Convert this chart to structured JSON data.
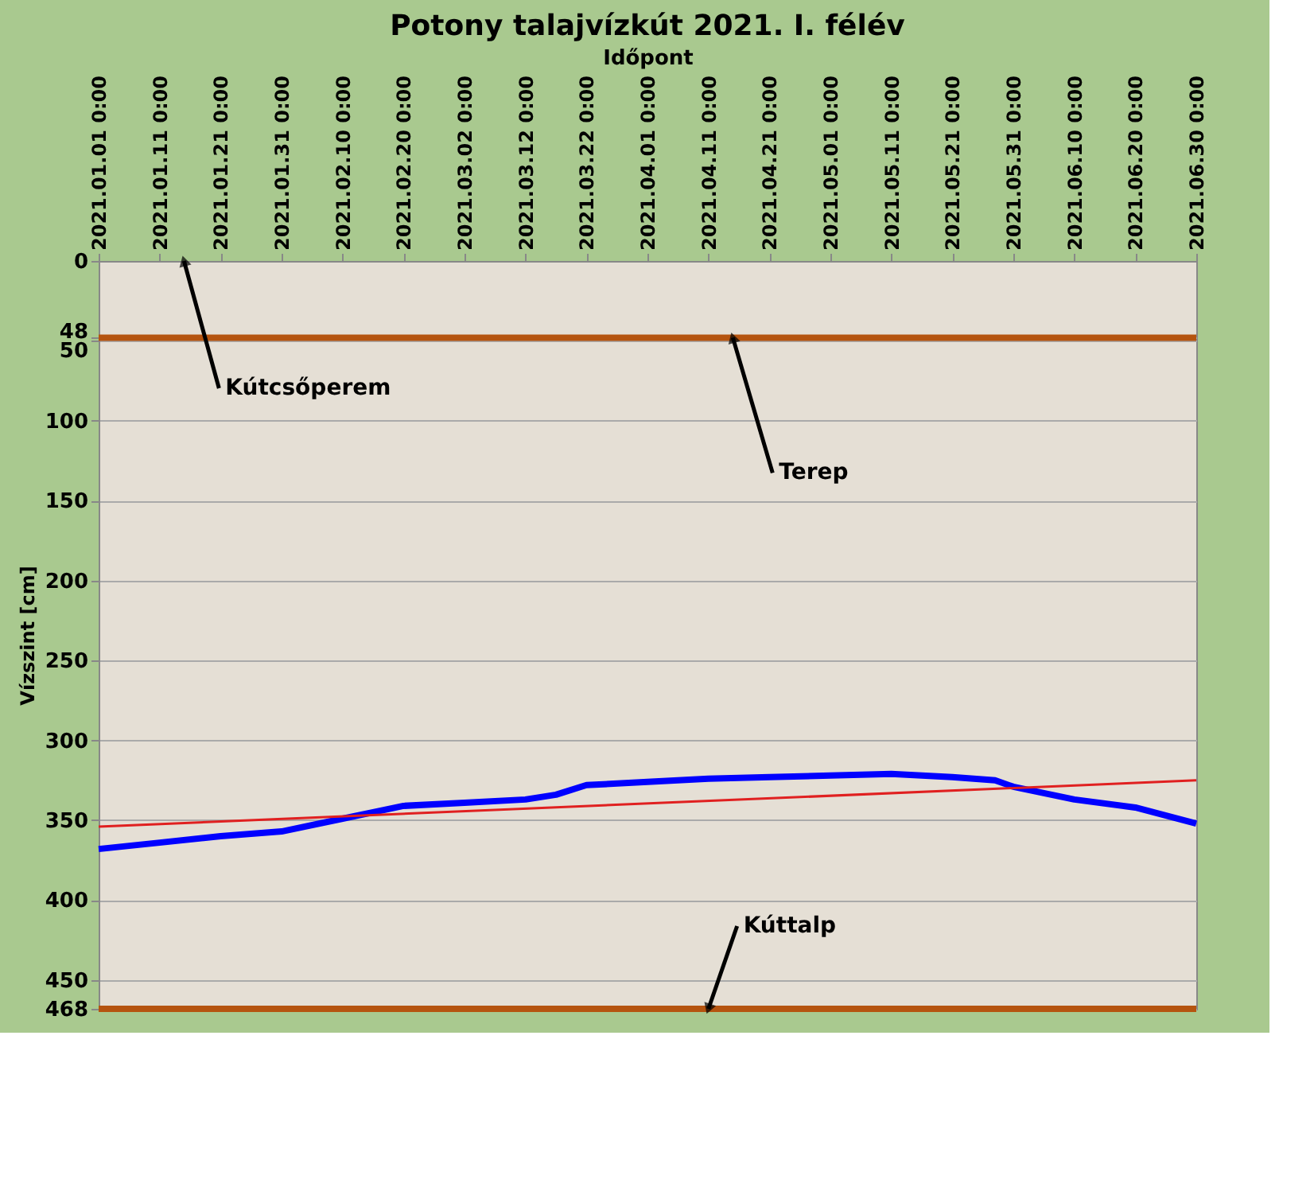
{
  "chart_data": {
    "type": "line",
    "title": "Potony talajvízkút 2021. I. félév",
    "xlabel": "Időpont",
    "ylabel": "Vízszint [cm]",
    "x": [
      "2021-01-01",
      "2021-01-11",
      "2021-01-21",
      "2021-01-31",
      "2021-02-10",
      "2021-02-20",
      "2021-03-02",
      "2021-03-12",
      "2021-03-17",
      "2021-03-22",
      "2021-04-01",
      "2021-04-11",
      "2021-04-21",
      "2021-05-01",
      "2021-05-11",
      "2021-05-21",
      "2021-05-28",
      "2021-05-31",
      "2021-06-10",
      "2021-06-20",
      "2021-06-30"
    ],
    "series": [
      {
        "color": "#0000ff",
        "values": [
          368,
          364,
          360,
          357,
          349,
          341,
          339,
          337,
          334,
          328,
          326,
          324,
          323,
          322,
          321,
          323,
          325,
          329,
          337,
          342,
          352
        ]
      },
      {
        "type": "line",
        "color": "#e02020",
        "x": [
          "2021-01-01",
          "2021-06-30"
        ],
        "values": [
          354,
          325
        ]
      }
    ],
    "xlim": [
      "2021-01-01",
      "2021-06-30"
    ],
    "xticks": [
      {
        "value": "2021-01-01",
        "label": "2021.01.01 0:00"
      },
      {
        "value": "2021-01-11",
        "label": "2021.01.11 0:00"
      },
      {
        "value": "2021-01-21",
        "label": "2021.01.21 0:00"
      },
      {
        "value": "2021-01-31",
        "label": "2021.01.31 0:00"
      },
      {
        "value": "2021-02-10",
        "label": "2021.02.10 0:00"
      },
      {
        "value": "2021-02-20",
        "label": "2021.02.20 0:00"
      },
      {
        "value": "2021-03-02",
        "label": "2021.03.02 0:00"
      },
      {
        "value": "2021-03-12",
        "label": "2021.03.12 0:00"
      },
      {
        "value": "2021-03-22",
        "label": "2021.03.22 0:00"
      },
      {
        "value": "2021-04-01",
        "label": "2021.04.01 0:00"
      },
      {
        "value": "2021-04-11",
        "label": "2021.04.11 0:00"
      },
      {
        "value": "2021-04-21",
        "label": "2021.04.21 0:00"
      },
      {
        "value": "2021-05-01",
        "label": "2021.05.01 0:00"
      },
      {
        "value": "2021-05-11",
        "label": "2021.05.11 0:00"
      },
      {
        "value": "2021-05-21",
        "label": "2021.05.21 0:00"
      },
      {
        "value": "2021-05-31",
        "label": "2021.05.31 0:00"
      },
      {
        "value": "2021-06-10",
        "label": "2021.06.10 0:00"
      },
      {
        "value": "2021-06-20",
        "label": "2021.06.20 0:00"
      },
      {
        "value": "2021-06-30",
        "label": "2021.06.30 0:00"
      }
    ],
    "ylim": [
      468,
      0
    ],
    "yticks": [
      0,
      48,
      50,
      100,
      150,
      200,
      250,
      300,
      350,
      400,
      450,
      468
    ],
    "grid": "y",
    "ref_lines": [
      {
        "axis": "y",
        "value": 48,
        "color": "#b5540f"
      },
      {
        "axis": "y",
        "value": 468,
        "color": "#b5540f"
      }
    ],
    "annotations": [
      {
        "text": "Kútcsőperem",
        "x": "2021-01-15",
        "y": 0
      },
      {
        "text": "Terep",
        "x": "2021-04-15",
        "y": 48
      },
      {
        "text": "Kúttalp",
        "x": "2021-04-11",
        "y": 468
      }
    ]
  }
}
